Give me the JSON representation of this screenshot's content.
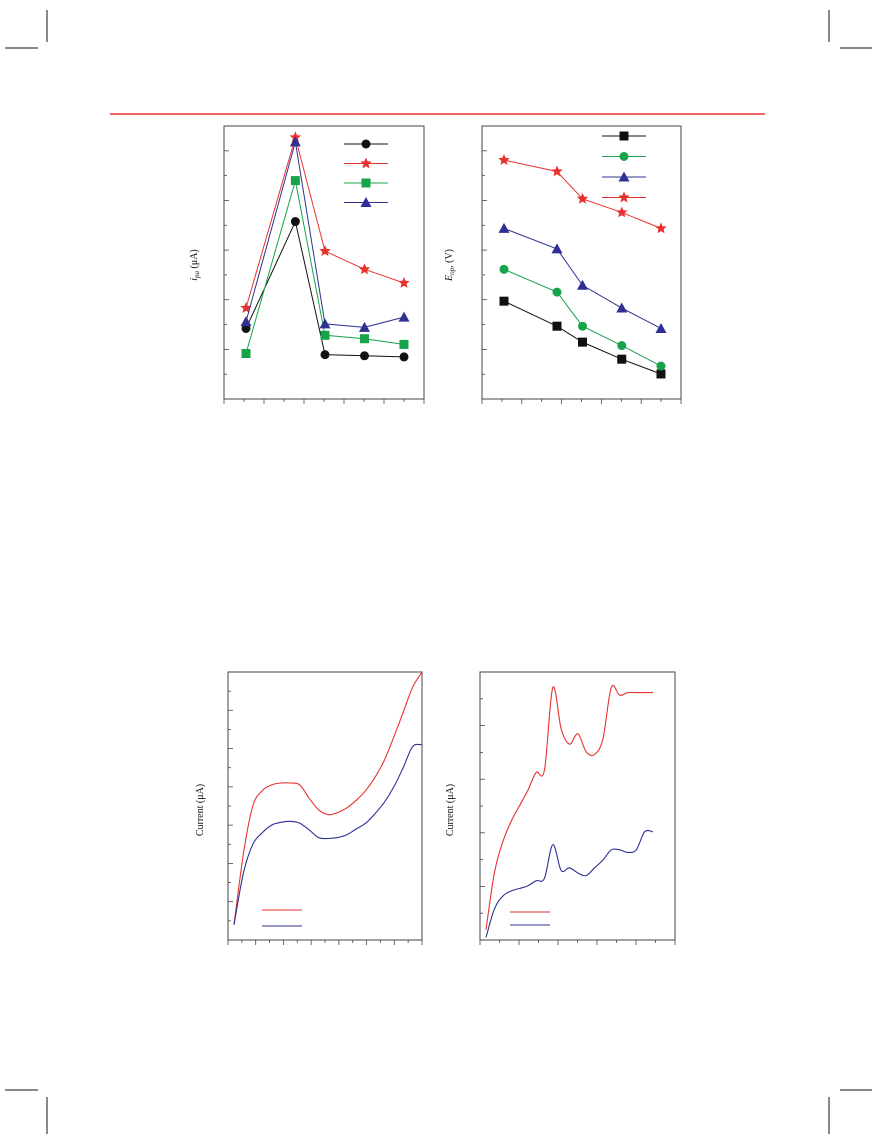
{
  "page": {
    "rule_color": "#e8322f"
  },
  "colors": {
    "black": "#111111",
    "red": "#e8322f",
    "green": "#16a34a",
    "blue": "#2e3192"
  },
  "chart_data": [
    {
      "type": "line",
      "title": "",
      "ylabel_italic": "i",
      "ylabel_sub": "pa",
      "ylabel_unit": " (μA)",
      "xlabel": "",
      "x": [
        1,
        2,
        3,
        4,
        5
      ],
      "ylim": [
        -1,
        11
      ],
      "legend_position": "top-right",
      "series": [
        {
          "color": "#111111",
          "marker": "circle",
          "values": [
            2.1,
            6.8,
            0.95,
            0.9,
            0.85
          ]
        },
        {
          "color": "#e8322f",
          "marker": "star",
          "values": [
            3.0,
            10.5,
            5.5,
            4.7,
            4.1
          ]
        },
        {
          "color": "#16a34a",
          "marker": "square",
          "values": [
            1.0,
            8.6,
            1.8,
            1.65,
            1.4
          ]
        },
        {
          "color": "#2e3192",
          "marker": "triangle",
          "values": [
            2.4,
            10.3,
            2.3,
            2.15,
            2.6
          ]
        }
      ]
    },
    {
      "type": "line",
      "title": "",
      "ylabel_italic": "E",
      "ylabel_sub": "op",
      "ylabel_unit": ", (V)",
      "xlabel": "",
      "x": [
        1,
        2,
        3,
        4,
        5
      ],
      "ylim": [
        -1,
        11
      ],
      "legend_position": "top-right",
      "series": [
        {
          "color": "#111111",
          "marker": "square",
          "values": [
            3.3,
            2.2,
            1.5,
            0.75,
            0.1
          ]
        },
        {
          "color": "#16a34a",
          "marker": "circle",
          "values": [
            4.7,
            3.7,
            2.2,
            1.35,
            0.45
          ]
        },
        {
          "color": "#2e3192",
          "marker": "triangle",
          "values": [
            6.5,
            5.6,
            4.0,
            3.0,
            2.1
          ]
        },
        {
          "color": "#e8322f",
          "marker": "star",
          "values": [
            9.5,
            9.0,
            7.8,
            7.2,
            6.5
          ]
        }
      ]
    },
    {
      "type": "line",
      "title": "",
      "ylabel": "Current (μA)",
      "xlabel": "",
      "x": [
        0,
        0.05,
        0.1,
        0.15,
        0.2,
        0.25,
        0.3,
        0.35,
        0.4,
        0.45,
        0.5,
        0.55,
        0.6,
        0.65,
        0.7,
        0.75,
        0.8,
        0.85,
        0.9,
        0.95,
        1.0
      ],
      "ylim": [
        0,
        14
      ],
      "legend_position": "bottom-left",
      "series": [
        {
          "color": "#e8322f",
          "values": [
            0.8,
            4.5,
            7.0,
            7.8,
            8.1,
            8.2,
            8.2,
            8.1,
            7.4,
            6.8,
            6.55,
            6.65,
            6.9,
            7.3,
            7.8,
            8.5,
            9.4,
            10.6,
            11.9,
            13.2,
            14.0
          ]
        },
        {
          "color": "#2e3192",
          "values": [
            0.8,
            3.5,
            5.0,
            5.6,
            6.0,
            6.15,
            6.2,
            6.1,
            5.75,
            5.35,
            5.3,
            5.35,
            5.5,
            5.8,
            6.1,
            6.6,
            7.2,
            8.0,
            9.0,
            10.1,
            10.2
          ]
        }
      ]
    },
    {
      "type": "line",
      "title": "",
      "ylabel": "Current (μA)",
      "xlabel": "",
      "x": [
        0,
        0.05,
        0.1,
        0.15,
        0.2,
        0.25,
        0.3,
        0.35,
        0.4,
        0.45,
        0.5,
        0.55,
        0.6,
        0.65,
        0.7,
        0.75,
        0.8,
        0.85,
        0.9,
        0.95,
        1.0
      ],
      "ylim": [
        0,
        5.2
      ],
      "legend_position": "bottom-left",
      "series": [
        {
          "color": "#e8322f",
          "values": [
            0.2,
            1.3,
            1.9,
            2.3,
            2.6,
            2.9,
            3.25,
            3.3,
            4.9,
            4.1,
            3.8,
            4.0,
            3.65,
            3.6,
            3.9,
            4.9,
            4.75,
            4.8,
            4.8,
            4.8,
            4.8
          ]
        },
        {
          "color": "#2e3192",
          "values": [
            0.05,
            0.6,
            0.85,
            0.95,
            1.0,
            1.05,
            1.15,
            1.2,
            1.85,
            1.35,
            1.4,
            1.3,
            1.25,
            1.4,
            1.55,
            1.75,
            1.75,
            1.7,
            1.75,
            2.1,
            2.1
          ]
        }
      ]
    }
  ]
}
